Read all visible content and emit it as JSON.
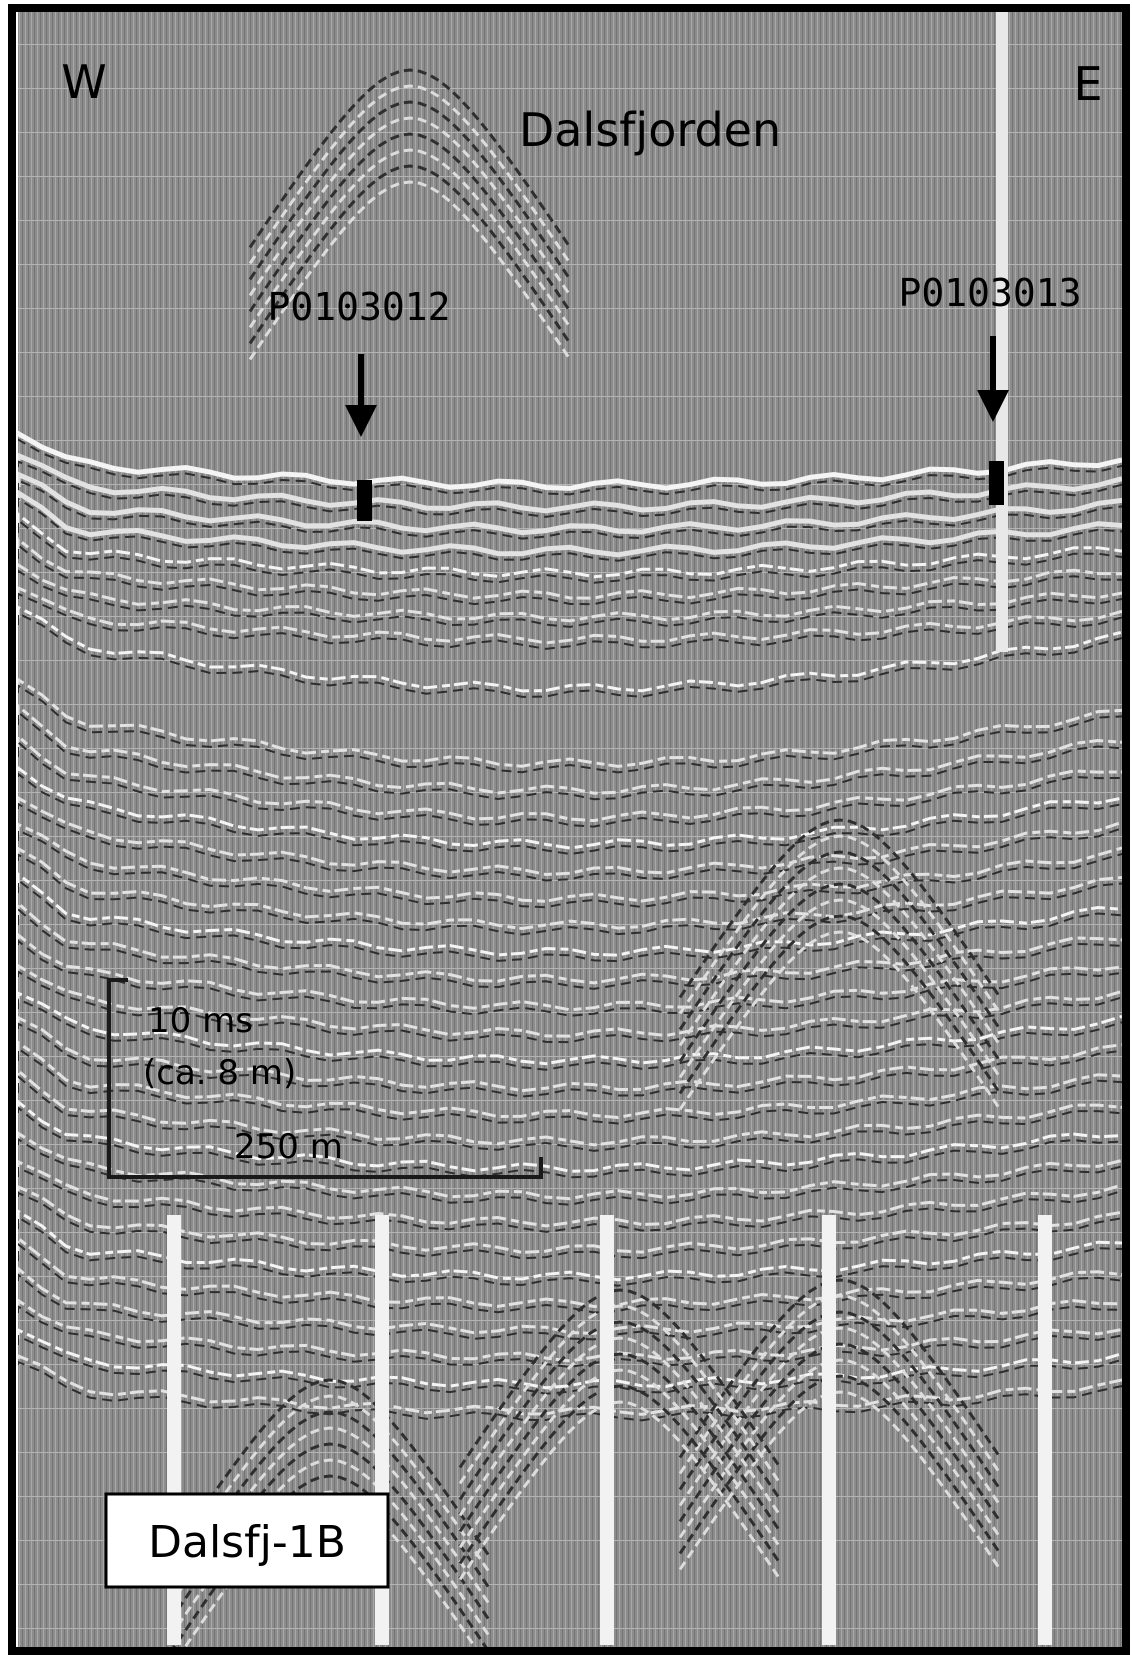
{
  "profile": {
    "west_label": "W",
    "east_label": "E",
    "title": "Dalsfjorden",
    "cores": [
      {
        "label": "P0103012"
      },
      {
        "label": "P0103013"
      }
    ],
    "scale_bar": {
      "vertical_label": "10 ms",
      "vertical_note": "(ca. 8 m)",
      "horizontal_label": "250 m"
    },
    "profile_id": "Dalsfj-1B"
  }
}
